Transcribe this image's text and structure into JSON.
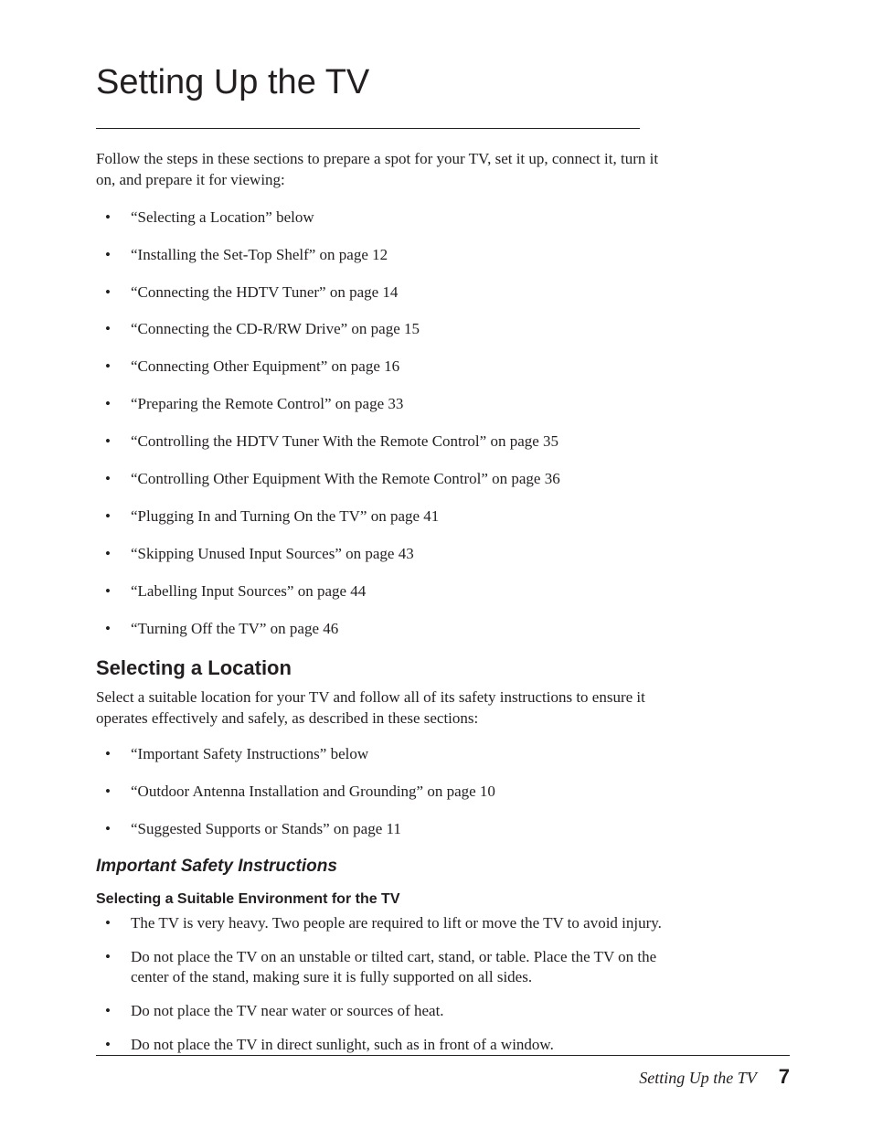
{
  "chapter": {
    "title": "Setting Up the TV",
    "title_fontsize": 38,
    "title_color": "#231f20",
    "intro": "Follow the steps in these sections to prepare a spot for your TV, set it up, connect it, turn it on, and prepare it for viewing:",
    "body_fontsize": 17,
    "toc_items": [
      "“Selecting a Location” below",
      "“Installing the Set-Top Shelf” on page 12",
      "“Connecting the HDTV Tuner” on page 14",
      "“Connecting the CD-R/RW Drive” on page 15",
      "“Connecting Other Equipment” on page 16",
      "“Preparing the Remote Control” on page 33",
      "“Controlling the HDTV Tuner With the Remote Control” on page 35",
      "“Controlling Other Equipment With the Remote Control” on page 36",
      "“Plugging In and Turning On the TV” on page 41",
      "“Skipping Unused Input Sources” on page 43",
      "“Labelling Input Sources” on page 44",
      "“Turning Off the TV” on page 46"
    ],
    "toc_item_spacing": 18
  },
  "section": {
    "heading": "Selecting a Location",
    "heading_fontsize": 22,
    "para": "Select a suitable location for your TV and follow all of its safety instructions to ensure it operates effectively and safely, as described in these sections:",
    "items": [
      "“Important Safety Instructions” below",
      "“Outdoor Antenna Installation and Grounding” on page 10",
      "“Suggested Supports or Stands” on page 11"
    ],
    "item_spacing": 18
  },
  "sub": {
    "heading": "Important Safety Instructions",
    "heading_fontsize": 19
  },
  "subsub": {
    "heading": "Selecting a Suitable Environment for the TV",
    "heading_fontsize": 16,
    "items": [
      "The TV is very heavy. Two people are required to lift or move the TV to avoid injury.",
      "Do not place the TV on an unstable or tilted cart, stand, or table. Place the TV on the center of the stand, making sure it is fully supported on all sides.",
      "Do not place the TV near water or sources of heat.",
      "Do not place the TV in direct sunlight, such as in front of a window."
    ],
    "item_spacing": 14
  },
  "footer": {
    "section_label": "Setting Up the TV",
    "section_fontsize": 18,
    "page_number": "7",
    "page_fontsize": 22,
    "line_color": "#231f20"
  },
  "colors": {
    "background": "#ffffff",
    "text": "#231f20",
    "rule": "#231f20"
  }
}
